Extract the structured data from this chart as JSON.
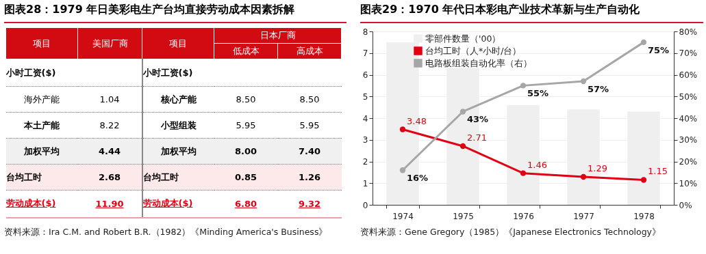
{
  "chart_data": [
    {
      "type": "other",
      "title": "图表28：1979 年日美彩电生产台均直接劳动成本因素拆解",
      "categories": [
        "项目",
        "美国厂商",
        "项目",
        "低成本",
        "高成本"
      ],
      "annotations": [
        "日本厂商",
        "资料来源：Ira C.M. and Robert B.R.（1982）《Minding America's Business》"
      ],
      "cell_labels": [
        [
          "小时工资($)",
          null,
          "小时工资($)",
          null,
          null
        ],
        [
          "海外产能",
          "1.04",
          "核心产能",
          "8.50",
          "8.50"
        ],
        [
          "本土产能",
          "8.22",
          "小型组装",
          "5.95",
          "5.95"
        ],
        [
          "加权平均",
          "4.44",
          "加权平均",
          "8.00",
          "7.40"
        ],
        [
          "台均工时",
          "2.68",
          "台均工时",
          "0.85",
          "1.26"
        ],
        [
          "劳动成本($)",
          "11.90",
          "劳动成本($)",
          "6.80",
          "9.32"
        ]
      ]
    },
    {
      "type": "bar",
      "title": "图表29：1970 年代日本彩电产业技术革新与生产自动化",
      "categories": [
        "1974",
        "1975",
        "1976",
        "1977",
        "1978"
      ],
      "series": [
        {
          "name": "零部件数量（'00）",
          "type": "bar",
          "color": "#efefef",
          "values": [
            7.5,
            6.3,
            4.6,
            4.4,
            4.3
          ]
        },
        {
          "name": "台均工时（人*小时/台）",
          "type": "line",
          "color": "#e00012",
          "values": [
            3.48,
            2.71,
            1.46,
            1.29,
            1.15
          ],
          "value_labels": [
            "3.48",
            "2.71",
            "1.46",
            "1.29",
            "1.15"
          ]
        },
        {
          "name": "电路板组装自动化率（右）",
          "type": "line",
          "axis": "y2",
          "color": "#a6a6a6",
          "values": [
            16,
            43,
            55,
            57,
            75
          ],
          "value_labels": [
            "16%",
            "43%",
            "55%",
            "57%",
            "75%"
          ]
        }
      ],
      "ylim": [
        0,
        8
      ],
      "yticks": [
        0,
        1,
        2,
        3,
        4,
        5,
        6,
        7,
        8
      ],
      "y2lim": [
        0,
        80
      ],
      "y2ticks": [
        {
          "value": 0,
          "label": "0%"
        },
        {
          "value": 10,
          "label": "10%"
        },
        {
          "value": 20,
          "label": "20%"
        },
        {
          "value": 30,
          "label": "30%"
        },
        {
          "value": 40,
          "label": "40%"
        },
        {
          "value": 50,
          "label": "50%"
        },
        {
          "value": 60,
          "label": "60%"
        },
        {
          "value": 70,
          "label": "70%"
        },
        {
          "value": 80,
          "label": "80%"
        }
      ],
      "grid": "y",
      "legend": "top",
      "marker": "circle",
      "annotations": [
        "资料来源：Gene Gregory（1985）《Japanese Electronics Technology》"
      ]
    }
  ]
}
